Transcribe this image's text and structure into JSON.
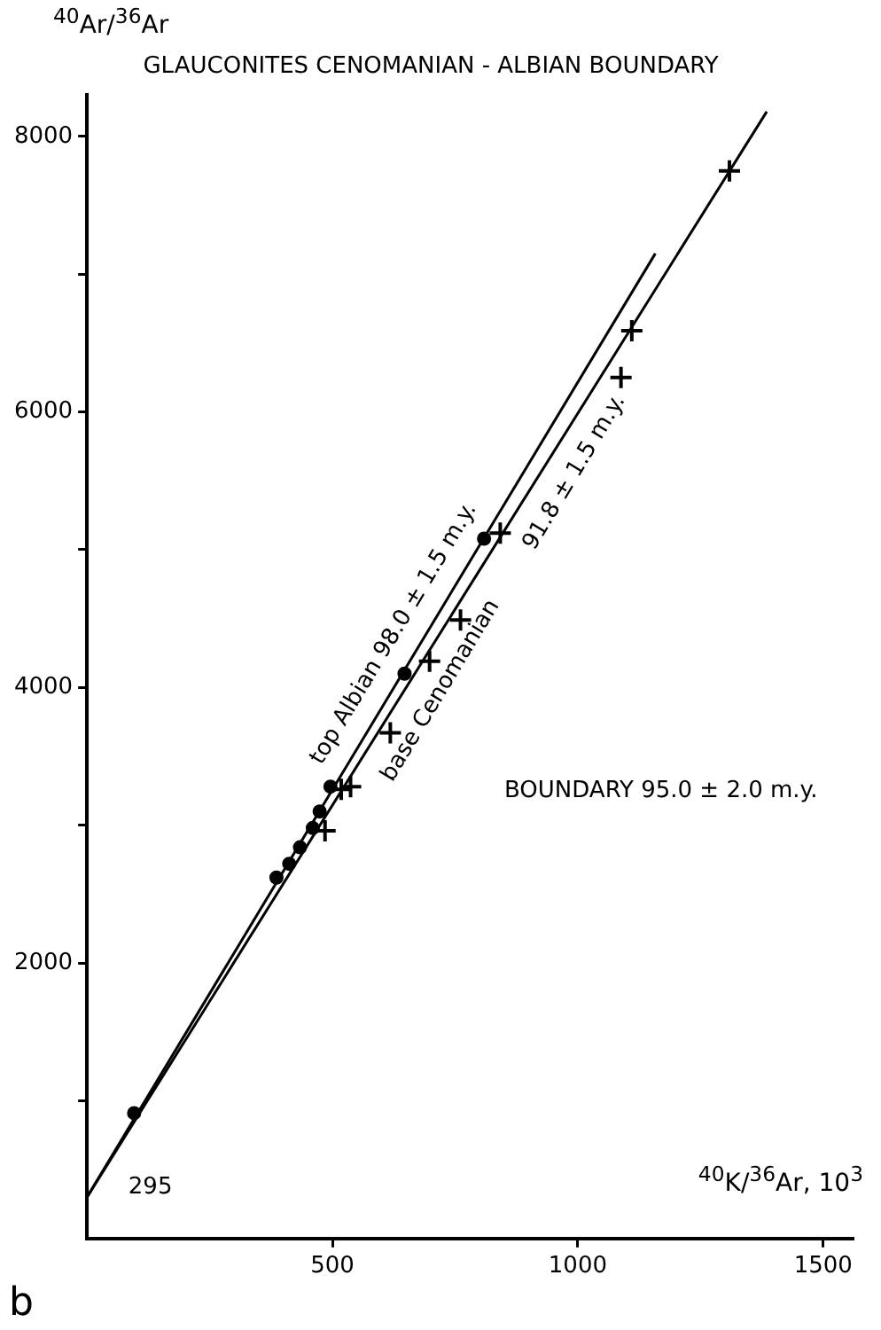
{
  "chart_data": {
    "type": "scatter",
    "title": "GLAUCONITES CENOMANIAN - ALBIAN BOUNDARY",
    "xlabel": "$^{40}$K/$^{36}$Ar, 10$^{3}$",
    "ylabel": "$^{40}$Ar/$^{36}$Ar",
    "xlim": [
      0,
      1560
    ],
    "ylim": [
      0,
      8300
    ],
    "xticks": [
      500,
      1000,
      1500
    ],
    "yticks": [
      {
        "value": 1000,
        "label": null
      },
      2000,
      {
        "value": 3000,
        "label": null
      },
      4000,
      {
        "value": 5000,
        "label": null
      },
      6000,
      {
        "value": 7000,
        "label": null
      },
      8000
    ],
    "grid": false,
    "legend": false,
    "series": [
      {
        "type": "scatter",
        "color": "#000000",
        "marker": "circle",
        "x": [
          96,
          386,
          412,
          434,
          460,
          474,
          496,
          647,
          809
        ],
        "values": [
          910,
          2620,
          2720,
          2840,
          2980,
          3100,
          3280,
          4100,
          5080
        ]
      },
      {
        "type": "scatter",
        "color": "#000000",
        "marker": "cross",
        "x": [
          485,
          518,
          537,
          618,
          698,
          761,
          842,
          1088,
          1110,
          1309
        ],
        "values": [
          2960,
          3260,
          3280,
          3670,
          4190,
          4490,
          5120,
          6250,
          6590,
          7750
        ]
      },
      {
        "type": "line",
        "color": "#000000",
        "marker": "none",
        "line_style": "solid",
        "x": [
          0,
          1158
        ],
        "values": [
          300,
          7150
        ]
      },
      {
        "type": "line",
        "color": "#000000",
        "marker": "none",
        "line_style": "solid",
        "x": [
          0,
          1385
        ],
        "values": [
          300,
          8180
        ]
      }
    ],
    "annotations": [
      "top Albian 98.0 ± 1.5 m.y.",
      "base Cenomanian",
      "91.8 ± 1.5 m.y.",
      "295",
      "BOUNDARY 95.0 ± 2.0 m.y.",
      "b"
    ]
  }
}
